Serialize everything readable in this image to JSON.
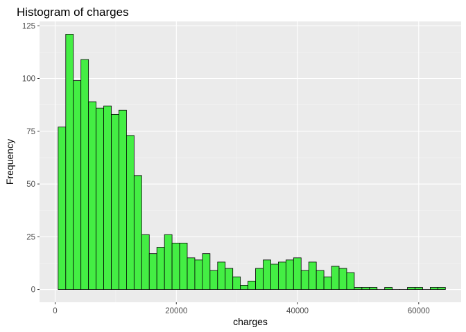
{
  "chart_data": {
    "type": "bar",
    "title": "Histogram of charges",
    "xlabel": "charges",
    "ylabel": "Frequency",
    "xlim": [
      -2573,
      67000
    ],
    "ylim": [
      -6.05,
      127.05
    ],
    "bin_width": 1253,
    "bin_start": 500,
    "x_ticks": [
      0,
      20000,
      40000,
      60000
    ],
    "x_tick_labels": [
      "0",
      "20000",
      "40000",
      "60000"
    ],
    "y_ticks": [
      0,
      25,
      50,
      75,
      100,
      125
    ],
    "y_tick_labels": [
      "0",
      "25",
      "50",
      "75",
      "100",
      "125"
    ],
    "values": [
      77,
      121,
      99,
      109,
      89,
      86,
      87,
      83,
      85,
      73,
      54,
      26,
      17,
      20,
      26,
      22,
      22,
      15,
      14,
      17,
      9,
      13,
      10,
      6,
      2,
      4,
      10,
      14,
      12,
      13,
      14,
      15,
      9,
      13,
      9,
      6,
      11,
      10,
      8,
      1,
      1,
      1,
      0,
      1,
      0,
      0,
      1,
      1,
      0,
      1,
      1
    ],
    "colors": {
      "bar_fill": "#44ee44",
      "bar_stroke": "#000000",
      "panel_background": "#ebebeb",
      "grid_major": "#ffffff",
      "grid_minor": "#f5f5f5"
    }
  }
}
